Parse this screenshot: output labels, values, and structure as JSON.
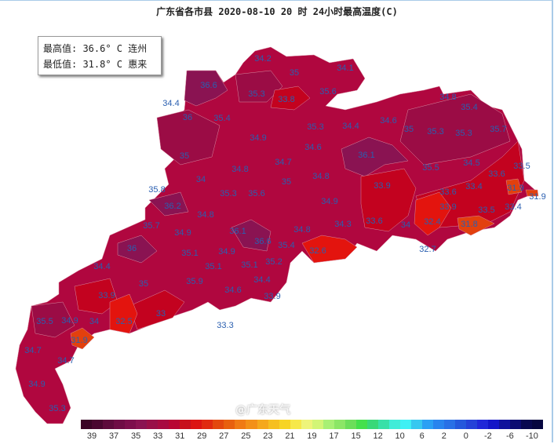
{
  "title": "广东省各市县 2020-08-10 20 时 24小时最高温度(C)",
  "info": {
    "max": "最高值: 36.6° C 连州",
    "min": "最低值: 31.8° C 惠来"
  },
  "watermark": "@广东天气",
  "colors": {
    "base": "#b0073f",
    "dark": "#9b0c45",
    "purple": "#8a1352",
    "red": "#c3021f",
    "bright_red": "#e3140e",
    "orange": "#e2400e",
    "label": "#2a5fb0"
  },
  "map_labels": [
    "34.2",
    "35",
    "34.1",
    "36.6",
    "34.4",
    "35.3",
    "33.8",
    "35.6",
    "36",
    "35.4",
    "34.9",
    "35.3",
    "34.6",
    "35",
    "34.7",
    "34.8",
    "34",
    "35",
    "34.8",
    "35.8",
    "35.3",
    "35.6",
    "34.8",
    "35.4",
    "34.4",
    "34.6",
    "35",
    "35.3",
    "35.3",
    "35.7",
    "36.1",
    "35.5",
    "34.5",
    "33.5",
    "33.6",
    "33.9",
    "33.4",
    "31.9",
    "31.9",
    "33.6",
    "33.9",
    "33.5",
    "33.4",
    "33.6",
    "34.3",
    "34",
    "32.4",
    "31.8",
    "32.7",
    "34.9",
    "36.2",
    "34.8",
    "35.7",
    "34.9",
    "36.1",
    "36.6",
    "36",
    "35.1",
    "34.9",
    "35.4",
    "32.6",
    "35.1",
    "35.1",
    "35.2",
    "35",
    "35.9",
    "34.6",
    "34.4",
    "33.9",
    "32.5",
    "33",
    "33.3",
    "34.8",
    "34.4",
    "33.9",
    "35.5",
    "34.9",
    "34",
    "31.9",
    "34.7",
    "34.7",
    "34.9",
    "35.3"
  ],
  "legend": {
    "colors": [
      "#3a0426",
      "#4a0630",
      "#5e0a3c",
      "#6f0c45",
      "#7d0e4c",
      "#8a1352",
      "#990f48",
      "#a80a40",
      "#b80533",
      "#c8101c",
      "#dc1412",
      "#e02a10",
      "#e3480e",
      "#e8600e",
      "#f07a14",
      "#f39018",
      "#f5a81c",
      "#f6bf20",
      "#f7d424",
      "#f6e84a",
      "#eef47a",
      "#d2f576",
      "#a8f074",
      "#8ce666",
      "#6cde5a",
      "#44e04c",
      "#38d878",
      "#38e0a8",
      "#40ecd8",
      "#3ef0f4",
      "#36c8f0",
      "#2aa0f4",
      "#2884ee",
      "#2870e6",
      "#2458dc",
      "#2442d8",
      "#2028d8",
      "#1416c8",
      "#10129c",
      "#0c0c72",
      "#080850",
      "#060640"
    ],
    "ticks": [
      "39",
      "37",
      "35",
      "33",
      "31",
      "29",
      "27",
      "25",
      "23",
      "21",
      "19",
      "17",
      "15",
      "12",
      "10",
      "6",
      "2",
      "0",
      "-2",
      "-6",
      "-10"
    ]
  }
}
